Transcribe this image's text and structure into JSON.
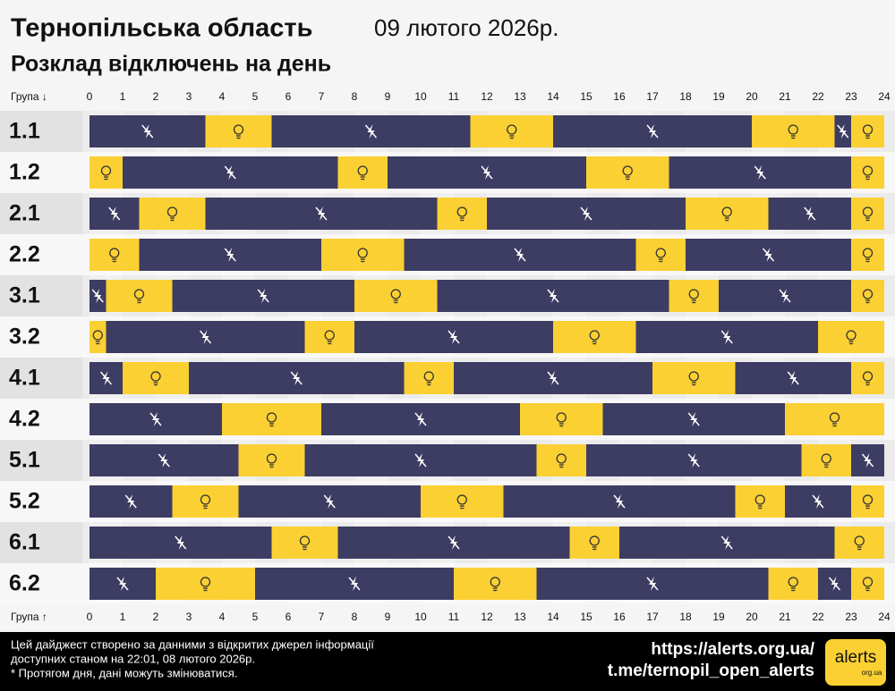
{
  "chart_data": {
    "type": "timeline",
    "title": "Тернопільська область",
    "date": "09 лютого 2026р.",
    "subtitle": "Розклад відключень на день",
    "axis_label_top": "Група ↓",
    "axis_label_bottom": "Група ↑",
    "xlim": [
      0,
      24
    ],
    "xticks": [
      0,
      1,
      2,
      3,
      4,
      5,
      6,
      7,
      8,
      9,
      10,
      11,
      12,
      13,
      14,
      15,
      16,
      17,
      18,
      19,
      20,
      21,
      22,
      23,
      24
    ],
    "colors": {
      "off": "#3d3c62",
      "on": "#fbd033"
    },
    "groups": [
      {
        "name": "1.1",
        "segments": [
          [
            0,
            3.5,
            "off"
          ],
          [
            3.5,
            5.5,
            "on"
          ],
          [
            5.5,
            11.5,
            "off"
          ],
          [
            11.5,
            14,
            "on"
          ],
          [
            14,
            20,
            "off"
          ],
          [
            20,
            22.5,
            "on"
          ],
          [
            22.5,
            23,
            "off"
          ],
          [
            23,
            24,
            "on"
          ]
        ]
      },
      {
        "name": "1.2",
        "segments": [
          [
            0,
            1,
            "on"
          ],
          [
            1,
            7.5,
            "off"
          ],
          [
            7.5,
            9,
            "on"
          ],
          [
            9,
            15,
            "off"
          ],
          [
            15,
            17.5,
            "on"
          ],
          [
            17.5,
            23,
            "off"
          ],
          [
            23,
            24,
            "on"
          ]
        ]
      },
      {
        "name": "2.1",
        "segments": [
          [
            0,
            1.5,
            "off"
          ],
          [
            1.5,
            3.5,
            "on"
          ],
          [
            3.5,
            10.5,
            "off"
          ],
          [
            10.5,
            12,
            "on"
          ],
          [
            12,
            18,
            "off"
          ],
          [
            18,
            20.5,
            "on"
          ],
          [
            20.5,
            23,
            "off"
          ],
          [
            23,
            24,
            "on"
          ]
        ]
      },
      {
        "name": "2.2",
        "segments": [
          [
            0,
            1.5,
            "on"
          ],
          [
            1.5,
            7,
            "off"
          ],
          [
            7,
            9.5,
            "on"
          ],
          [
            9.5,
            16.5,
            "off"
          ],
          [
            16.5,
            18,
            "on"
          ],
          [
            18,
            23,
            "off"
          ],
          [
            23,
            24,
            "on"
          ]
        ]
      },
      {
        "name": "3.1",
        "segments": [
          [
            0,
            0.5,
            "off"
          ],
          [
            0.5,
            2.5,
            "on"
          ],
          [
            2.5,
            8,
            "off"
          ],
          [
            8,
            10.5,
            "on"
          ],
          [
            10.5,
            17.5,
            "off"
          ],
          [
            17.5,
            19,
            "on"
          ],
          [
            19,
            23,
            "off"
          ],
          [
            23,
            24,
            "on"
          ]
        ]
      },
      {
        "name": "3.2",
        "segments": [
          [
            0,
            0.5,
            "on"
          ],
          [
            0.5,
            6.5,
            "off"
          ],
          [
            6.5,
            8,
            "on"
          ],
          [
            8,
            14,
            "off"
          ],
          [
            14,
            16.5,
            "on"
          ],
          [
            16.5,
            22,
            "off"
          ],
          [
            22,
            24,
            "on"
          ]
        ]
      },
      {
        "name": "4.1",
        "segments": [
          [
            0,
            1,
            "off"
          ],
          [
            1,
            3,
            "on"
          ],
          [
            3,
            9.5,
            "off"
          ],
          [
            9.5,
            11,
            "on"
          ],
          [
            11,
            17,
            "off"
          ],
          [
            17,
            19.5,
            "on"
          ],
          [
            19.5,
            23,
            "off"
          ],
          [
            23,
            24,
            "on"
          ]
        ]
      },
      {
        "name": "4.2",
        "segments": [
          [
            0,
            4,
            "off"
          ],
          [
            4,
            7,
            "on"
          ],
          [
            7,
            13,
            "off"
          ],
          [
            13,
            15.5,
            "on"
          ],
          [
            15.5,
            21,
            "off"
          ],
          [
            21,
            24,
            "on"
          ]
        ]
      },
      {
        "name": "5.1",
        "segments": [
          [
            0,
            4.5,
            "off"
          ],
          [
            4.5,
            6.5,
            "on"
          ],
          [
            6.5,
            13.5,
            "off"
          ],
          [
            13.5,
            15,
            "on"
          ],
          [
            15,
            21.5,
            "off"
          ],
          [
            21.5,
            23,
            "on"
          ],
          [
            23,
            24,
            "off"
          ]
        ]
      },
      {
        "name": "5.2",
        "segments": [
          [
            0,
            2.5,
            "off"
          ],
          [
            2.5,
            4.5,
            "on"
          ],
          [
            4.5,
            10,
            "off"
          ],
          [
            10,
            12.5,
            "on"
          ],
          [
            12.5,
            19.5,
            "off"
          ],
          [
            19.5,
            21,
            "on"
          ],
          [
            21,
            23,
            "off"
          ],
          [
            23,
            24,
            "on"
          ]
        ]
      },
      {
        "name": "6.1",
        "segments": [
          [
            0,
            5.5,
            "off"
          ],
          [
            5.5,
            7.5,
            "on"
          ],
          [
            7.5,
            14.5,
            "off"
          ],
          [
            14.5,
            16,
            "on"
          ],
          [
            16,
            22.5,
            "off"
          ],
          [
            22.5,
            24,
            "on"
          ]
        ]
      },
      {
        "name": "6.2",
        "segments": [
          [
            0,
            2,
            "off"
          ],
          [
            2,
            5,
            "on"
          ],
          [
            5,
            11,
            "off"
          ],
          [
            11,
            13.5,
            "on"
          ],
          [
            13.5,
            20.5,
            "off"
          ],
          [
            20.5,
            22,
            "on"
          ],
          [
            22,
            23,
            "off"
          ],
          [
            23,
            24,
            "on"
          ]
        ]
      }
    ],
    "footer": {
      "lines": [
        "Цей дайджест створено за данними з відкритих джерел інформації",
        "доступних станом на 22:01, 08 лютого 2026р.",
        "* Протягом дня, дані можуть змінюватися."
      ],
      "links": [
        "https://alerts.org.ua/",
        "t.me/ternopil_open_alerts"
      ],
      "logo": "alerts",
      "logo_sub": "org.ua"
    }
  }
}
